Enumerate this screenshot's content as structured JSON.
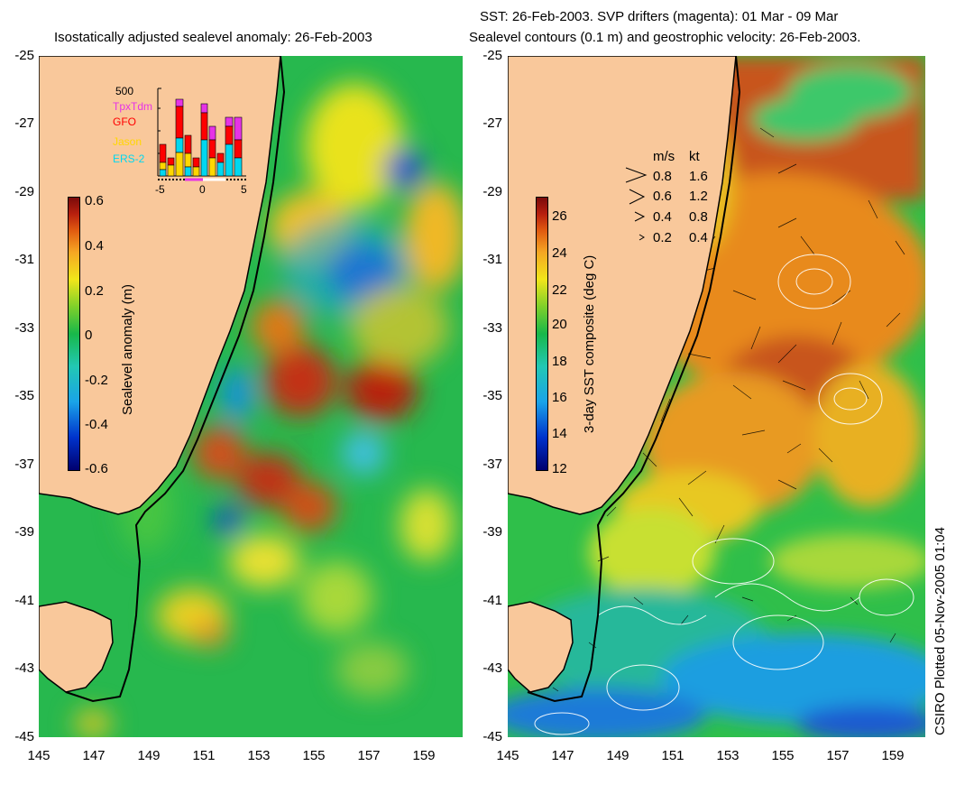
{
  "left_map": {
    "title": "Isostatically adjusted sealevel anomaly: 26-Feb-2003",
    "y_ticks": [
      "-25",
      "-27",
      "-29",
      "-31",
      "-33",
      "-35",
      "-37",
      "-39",
      "-41",
      "-43",
      "-45"
    ],
    "x_ticks": [
      "145",
      "147",
      "149",
      "151",
      "153",
      "155",
      "157",
      "159"
    ],
    "colorbar": {
      "label": "Sealevel anomaly (m)",
      "ticks": [
        "0.6",
        "0.4",
        "0.2",
        "0",
        "-0.2",
        "-0.4",
        "-0.6"
      ],
      "colors": [
        "#00006e",
        "#0033cc",
        "#1aa3e8",
        "#22c8b4",
        "#18b84a",
        "#7fd02a",
        "#f2e61a",
        "#f5a623",
        "#e05a10",
        "#b8200e",
        "#7a0a0a"
      ]
    },
    "inset": {
      "y_label": "500",
      "x_ticks": [
        "-5",
        "0",
        "5"
      ],
      "legend": [
        {
          "name": "TpxTdm",
          "color": "#e633e6"
        },
        {
          "name": "GFO",
          "color": "#ff0000"
        },
        {
          "name": "Jason",
          "color": "#ffd700"
        },
        {
          "name": "ERS-2",
          "color": "#00d8f0"
        }
      ]
    }
  },
  "right_map": {
    "title_line1": "SST: 26-Feb-2003. SVP drifters (magenta): 01 Mar - 09 Mar",
    "title_line2": "Sealevel contours (0.1 m) and geostrophic velocity: 26-Feb-2003.",
    "y_ticks": [
      "-25",
      "-27",
      "-29",
      "-31",
      "-33",
      "-35",
      "-37",
      "-39",
      "-41",
      "-43",
      "-45"
    ],
    "x_ticks": [
      "145",
      "147",
      "149",
      "151",
      "153",
      "155",
      "157",
      "159"
    ],
    "colorbar": {
      "label": "3-day SST composite (deg C)",
      "ticks": [
        "26",
        "24",
        "22",
        "20",
        "18",
        "16",
        "14",
        "12"
      ],
      "colors": [
        "#00006e",
        "#0033cc",
        "#1aa3e8",
        "#22c8b4",
        "#18b84a",
        "#7fd02a",
        "#f2e61a",
        "#f5a623",
        "#e05a10",
        "#b8200e",
        "#7a0a0a"
      ]
    },
    "velocity_legend": {
      "header_ms": "m/s",
      "header_kt": "kt",
      "rows": [
        {
          "ms": "0.8",
          "kt": "1.6"
        },
        {
          "ms": "0.6",
          "kt": "1.2"
        },
        {
          "ms": "0.4",
          "kt": "0.8"
        },
        {
          "ms": "0.2",
          "kt": "0.4"
        }
      ]
    }
  },
  "credit": "CSIRO Plotted 05-Nov-2005 01:04",
  "colors": {
    "land": "#f9c89b",
    "coast": "#000000"
  }
}
